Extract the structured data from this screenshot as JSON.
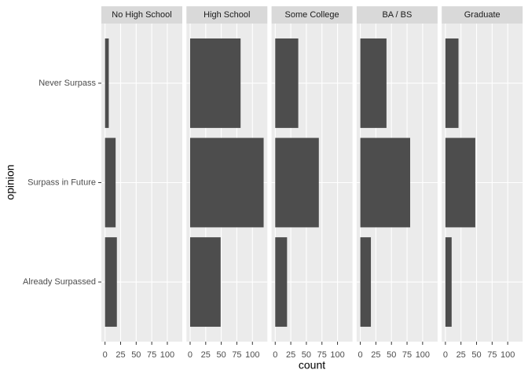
{
  "chart_data": {
    "type": "bar",
    "orientation": "horizontal",
    "xlabel": "count",
    "ylabel": "opinion",
    "categories": [
      "Never Surpass",
      "Surpass in Future",
      "Already Surpassed"
    ],
    "color": "#4d4d4d",
    "panels": [
      {
        "title": "No High School",
        "values": [
          6,
          17,
          19
        ]
      },
      {
        "title": "High School",
        "values": [
          81,
          118,
          49
        ]
      },
      {
        "title": "Some College",
        "values": [
          37,
          70,
          19
        ]
      },
      {
        "title": "BA / BS",
        "values": [
          42,
          80,
          17
        ]
      },
      {
        "title": "Graduate",
        "values": [
          21,
          48,
          10
        ]
      }
    ],
    "xlim": [
      -5.9,
      124
    ],
    "xticks": [
      0,
      25,
      50,
      75,
      100
    ],
    "grid": true
  }
}
